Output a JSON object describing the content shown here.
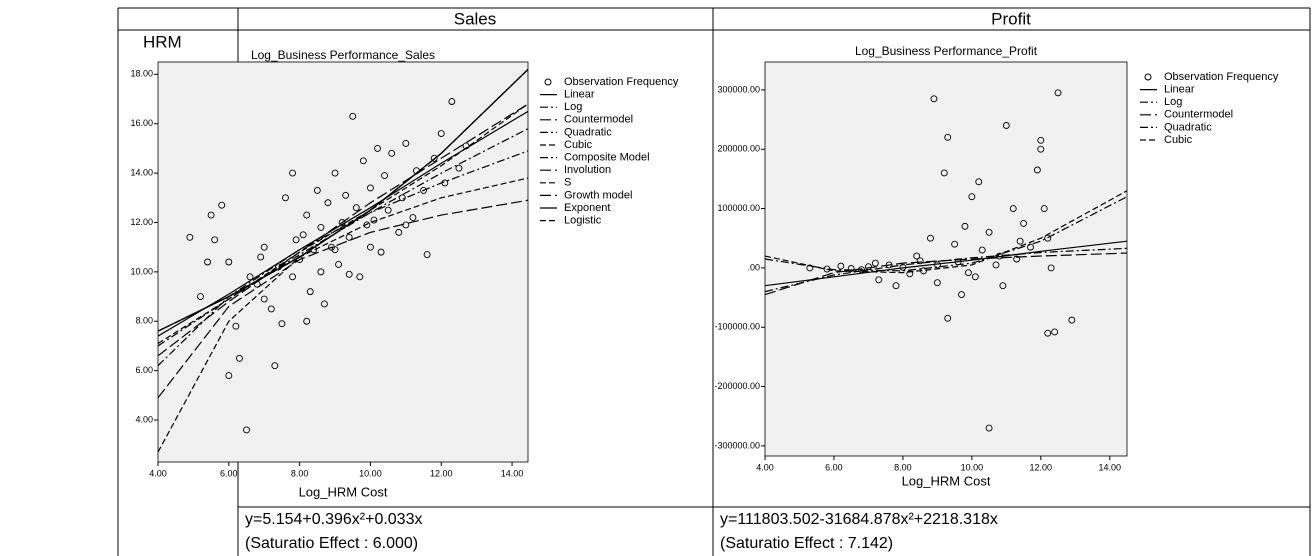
{
  "table": {
    "columns": [
      "Sales",
      "Profit"
    ],
    "row_label": "HRM",
    "formulas": [
      "y=5.154+0.396x²+0.033x",
      "y=111803.502-31684.878x²+2218.318x"
    ],
    "notes": [
      "(Saturatio Effect : 6.000)",
      "(Saturatio Effect : 7.142)"
    ]
  },
  "chart_data": [
    {
      "type": "scatter",
      "title": "Log_Business Performance_Sales",
      "x_label": "Log_HRM Cost",
      "xlim": [
        4,
        14.45
      ],
      "ylim": [
        2.3,
        18.5
      ],
      "xticks": [
        {
          "value": 4,
          "label": "4.00"
        },
        {
          "value": 6,
          "label": "6.00"
        },
        {
          "value": 8,
          "label": "8.00"
        },
        {
          "value": 10,
          "label": "10.00"
        },
        {
          "value": 12,
          "label": "12.00"
        },
        {
          "value": 14,
          "label": "14.00"
        }
      ],
      "yticks": [
        {
          "value": 4,
          "label": "4.00"
        },
        {
          "value": 6,
          "label": "6.00"
        },
        {
          "value": 8,
          "label": "8.00"
        },
        {
          "value": 10,
          "label": "10.00"
        },
        {
          "value": 12,
          "label": "12.00"
        },
        {
          "value": 14,
          "label": "14.00"
        },
        {
          "value": 16,
          "label": "16.00"
        },
        {
          "value": 18,
          "label": "18.00"
        }
      ],
      "legend": "right",
      "background": "#f0f0f0",
      "series": [
        {
          "name": "Observation Frequency",
          "kind": "points",
          "color": "#000000",
          "x": [
            5.2,
            5.5,
            5.8,
            5.6,
            6.0,
            6.2,
            6.5,
            6.3,
            6.0,
            6.8,
            7.0,
            7.2,
            7.5,
            7.3,
            7.6,
            7.8,
            7.8,
            8.0,
            8.1,
            8.2,
            8.3,
            8.4,
            8.5,
            8.6,
            8.7,
            8.8,
            8.9,
            9.0,
            9.1,
            9.2,
            9.3,
            9.4,
            9.5,
            9.6,
            9.7,
            9.8,
            9.9,
            10.0,
            10.1,
            10.2,
            10.3,
            10.4,
            10.5,
            10.6,
            10.8,
            10.9,
            11.0,
            11.2,
            11.3,
            11.5,
            11.6,
            11.8,
            12.0,
            12.1,
            12.3,
            12.5,
            12.7,
            7.0,
            7.4,
            7.9,
            8.2,
            6.6,
            6.9,
            8.6,
            9.0,
            9.4,
            5.4,
            4.9,
            10.0,
            11.0
          ],
          "values": [
            9.0,
            12.3,
            12.7,
            11.3,
            10.4,
            7.8,
            3.6,
            6.5,
            5.8,
            9.5,
            11.0,
            8.5,
            7.9,
            6.2,
            13.0,
            14.0,
            9.8,
            10.5,
            11.5,
            12.3,
            9.2,
            10.9,
            13.3,
            11.8,
            8.7,
            12.8,
            11.0,
            14.0,
            10.3,
            12.0,
            13.1,
            11.4,
            16.3,
            12.6,
            9.8,
            14.5,
            11.9,
            13.4,
            12.1,
            15.0,
            10.8,
            13.9,
            12.5,
            14.8,
            11.6,
            13.0,
            15.2,
            12.2,
            14.1,
            13.3,
            10.7,
            14.6,
            15.6,
            13.6,
            16.9,
            14.2,
            15.1,
            8.9,
            10.2,
            11.3,
            8.0,
            9.8,
            10.6,
            10.0,
            10.9,
            9.9,
            10.4,
            11.4,
            11.0,
            11.9
          ]
        },
        {
          "name": "Linear",
          "kind": "line",
          "style": "solid",
          "color": "#000000",
          "x": [
            4,
            6,
            8,
            10,
            12,
            14.45
          ],
          "values": [
            7.4,
            9.1,
            10.9,
            12.6,
            14.4,
            16.5
          ]
        },
        {
          "name": "Log",
          "kind": "line",
          "style": "dashdot",
          "color": "#000000",
          "x": [
            4,
            6,
            8,
            10,
            12,
            14.45
          ],
          "values": [
            6.2,
            9.0,
            10.9,
            12.4,
            13.6,
            14.9
          ]
        },
        {
          "name": "Countermodel",
          "kind": "line",
          "style": "longdash",
          "color": "#000000",
          "x": [
            4,
            6,
            8,
            10,
            12,
            14.45
          ],
          "values": [
            4.9,
            8.6,
            10.5,
            11.6,
            12.3,
            12.9
          ]
        },
        {
          "name": "Quadratic",
          "kind": "line",
          "style": "dashdot",
          "color": "#000000",
          "x": [
            4,
            6,
            8,
            10,
            12,
            14.45
          ],
          "values": [
            7.0,
            8.9,
            10.7,
            12.4,
            14.0,
            15.8
          ]
        },
        {
          "name": "Cubic",
          "kind": "line",
          "style": "dash",
          "color": "#000000",
          "x": [
            4,
            6,
            8,
            10,
            12,
            14.45
          ],
          "values": [
            7.1,
            8.9,
            10.8,
            12.5,
            14.3,
            16.8
          ]
        },
        {
          "name": "Composite Model",
          "kind": "line",
          "style": "dashdot",
          "color": "#000000",
          "x": [
            4,
            6,
            8,
            10,
            12,
            14.45
          ],
          "values": [
            7.6,
            9.0,
            10.6,
            12.5,
            14.8,
            18.2
          ]
        },
        {
          "name": "Involution",
          "kind": "line",
          "style": "longdash",
          "color": "#000000",
          "x": [
            4,
            6,
            8,
            10,
            12,
            14.45
          ],
          "values": [
            6.6,
            8.8,
            10.8,
            12.8,
            14.6,
            16.8
          ]
        },
        {
          "name": "S",
          "kind": "line",
          "style": "dash",
          "color": "#000000",
          "x": [
            4,
            6,
            8,
            10,
            12,
            14.45
          ],
          "values": [
            2.7,
            8.0,
            10.6,
            12.0,
            13.0,
            13.8
          ]
        },
        {
          "name": "Growth model",
          "kind": "line",
          "style": "longdash",
          "color": "#000000",
          "x": [
            4,
            6,
            8,
            10,
            12,
            14.45
          ],
          "values": [
            7.6,
            9.0,
            10.6,
            12.5,
            14.8,
            18.2
          ]
        },
        {
          "name": "Exponent",
          "kind": "line",
          "style": "solid",
          "color": "#000000",
          "x": [
            4,
            6,
            8,
            10,
            12,
            14.45
          ],
          "values": [
            7.6,
            9.0,
            10.6,
            12.5,
            14.8,
            18.2
          ]
        },
        {
          "name": "Logistic",
          "kind": "line",
          "style": "dash",
          "color": "#000000",
          "x": [
            4,
            6,
            8,
            10,
            12,
            14.45
          ],
          "values": [
            7.6,
            9.0,
            10.6,
            12.5,
            14.8,
            18.2
          ]
        }
      ]
    },
    {
      "type": "scatter",
      "title": "Log_Business Performance_Profit",
      "x_label": "Log_HRM Cost",
      "xlim": [
        4,
        14.5
      ],
      "ylim": [
        -317000,
        347000
      ],
      "xticks": [
        {
          "value": 4,
          "label": "4.00"
        },
        {
          "value": 6,
          "label": "6.00"
        },
        {
          "value": 8,
          "label": "8.00"
        },
        {
          "value": 10,
          "label": "10.00"
        },
        {
          "value": 12,
          "label": "12.00"
        },
        {
          "value": 14,
          "label": "14.00"
        }
      ],
      "yticks": [
        {
          "value": -300000,
          "label": "-300000.00"
        },
        {
          "value": -200000,
          "label": "-200000.00"
        },
        {
          "value": -100000,
          "label": "-100000.00"
        },
        {
          "value": 0,
          "label": ".00"
        },
        {
          "value": 100000,
          "label": "100000.00"
        },
        {
          "value": 200000,
          "label": "200000.00"
        },
        {
          "value": 300000,
          "label": "300000.00"
        }
      ],
      "legend": "right",
      "background": "#f0f0f0",
      "series": [
        {
          "name": "Observation Frequency",
          "kind": "points",
          "color": "#000000",
          "x": [
            5.3,
            5.8,
            6.2,
            6.5,
            7.0,
            7.3,
            7.6,
            7.8,
            8.0,
            8.2,
            8.4,
            8.6,
            8.8,
            8.9,
            9.0,
            9.2,
            9.3,
            9.3,
            9.5,
            9.6,
            9.7,
            9.8,
            10.0,
            10.1,
            10.2,
            10.3,
            10.5,
            10.5,
            10.7,
            10.9,
            11.0,
            11.2,
            11.3,
            11.5,
            11.7,
            11.9,
            12.0,
            12.0,
            12.1,
            12.2,
            12.3,
            12.4,
            12.5,
            12.9,
            9.0,
            8.5,
            9.9,
            10.8,
            7.2,
            6.8,
            11.4,
            12.2
          ],
          "values": [
            0,
            -2000,
            3000,
            -1000,
            2000,
            -20000,
            5000,
            -30000,
            1000,
            -10000,
            20000,
            -5000,
            50000,
            285000,
            -25000,
            160000,
            220000,
            -85000,
            40000,
            10000,
            -45000,
            70000,
            120000,
            -15000,
            145000,
            30000,
            -270000,
            60000,
            5000,
            -30000,
            240000,
            100000,
            15000,
            75000,
            35000,
            165000,
            215000,
            200000,
            100000,
            -110000,
            0,
            -108000,
            295000,
            -88000,
            5000,
            12000,
            -8000,
            20000,
            8000,
            -3000,
            45000,
            50000
          ]
        },
        {
          "name": "Linear",
          "kind": "line",
          "style": "solid",
          "color": "#000000",
          "x": [
            4,
            6,
            8,
            10,
            12,
            14.5
          ],
          "values": [
            -30000,
            -15000,
            0,
            13000,
            28000,
            45000
          ]
        },
        {
          "name": "Log",
          "kind": "line",
          "style": "dashdot",
          "color": "#000000",
          "x": [
            4,
            6,
            8,
            10,
            12,
            14.5
          ],
          "values": [
            -40000,
            -12000,
            5000,
            17000,
            26000,
            33000
          ]
        },
        {
          "name": "Countermodel",
          "kind": "line",
          "style": "longdash",
          "color": "#000000",
          "x": [
            4,
            6,
            8,
            10,
            12,
            14.5
          ],
          "values": [
            -45000,
            -8000,
            8000,
            15000,
            20000,
            25000
          ]
        },
        {
          "name": "Quadratic",
          "kind": "line",
          "style": "dashdot",
          "color": "#000000",
          "x": [
            4,
            6,
            8,
            10,
            12,
            14.5
          ],
          "values": [
            15000,
            -3000,
            -5000,
            8000,
            45000,
            120000
          ]
        },
        {
          "name": "Cubic",
          "kind": "line",
          "style": "dash",
          "color": "#000000",
          "x": [
            4,
            6,
            8,
            10,
            12,
            14.5
          ],
          "values": [
            20000,
            -5000,
            -8000,
            5000,
            50000,
            130000
          ]
        }
      ]
    }
  ]
}
